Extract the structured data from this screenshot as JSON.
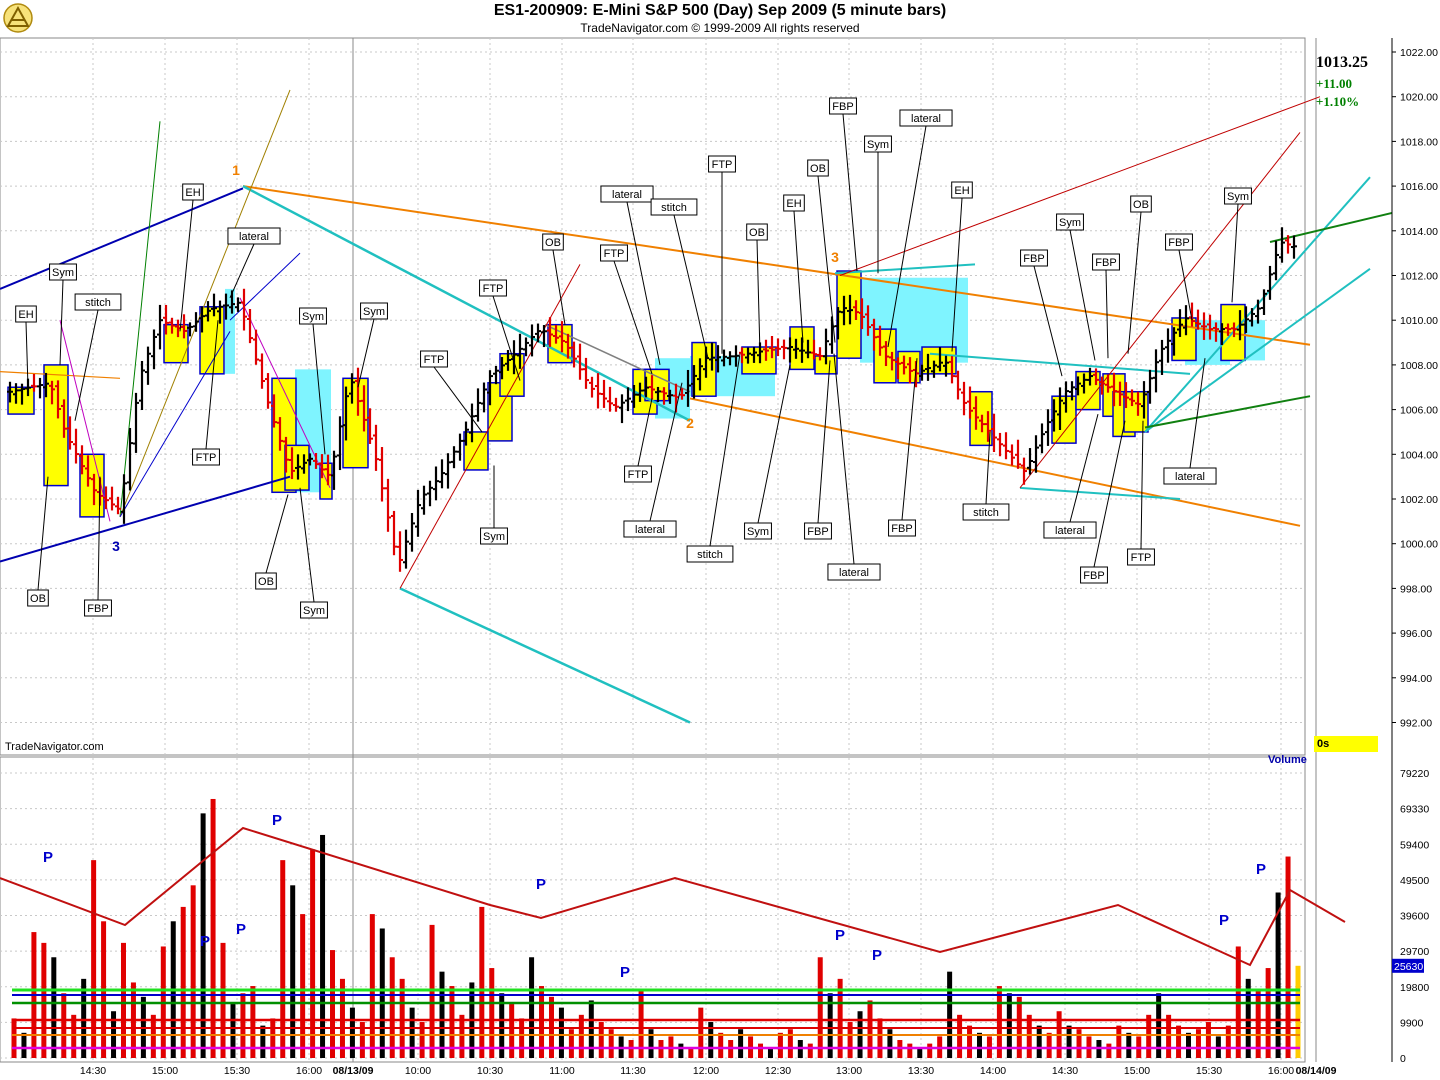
{
  "header": {
    "title": "ES1-200909:  E-Mini S&P 500 (Day) Sep 2009  (5 minute bars)",
    "subtitle": "TradeNavigator.com © 1999-2009 All rights reserved",
    "logo_icon": "tradenavigator-logo-icon"
  },
  "quote": {
    "last": "1013.25",
    "change": "+11.00",
    "pct": "+1.10%"
  },
  "timer": "0s",
  "watermark": "TradeNavigator.com",
  "volume_label": "Volume",
  "volume_last": "25630",
  "colors": {
    "up": "#000000",
    "down": "#e00000",
    "highlight": "#ffff00",
    "accent_box": "#0000cc",
    "cyan": "#20c0c0",
    "orange": "#f08000",
    "blue": "#0000b0"
  },
  "chart_data": [
    {
      "type": "ohlc",
      "title": "ES1-200909:  E-Mini S&P 500 (Day) Sep 2009  (5 minute bars)",
      "ylim": [
        990,
        1023
      ],
      "y_ticks": [
        "1022.00",
        "1020.00",
        "1018.00",
        "1016.00",
        "1014.00",
        "1012.00",
        "1010.00",
        "1008.00",
        "1006.00",
        "1004.00",
        "1002.00",
        "1000.00",
        "998.00",
        "996.00",
        "994.00",
        "992.00"
      ],
      "x_ticks": [
        "14:30",
        "15:00",
        "15:30",
        "16:00",
        "08/13/09",
        "10:00",
        "10:30",
        "11:00",
        "11:30",
        "12:00",
        "12:30",
        "13:00",
        "13:30",
        "14:00",
        "14:30",
        "15:00",
        "15:30",
        "16:00",
        "08/14/09"
      ],
      "wave_labels": [
        "1",
        "3",
        "2",
        "3"
      ],
      "annotations": [
        "EH",
        "Sym",
        "stitch",
        "OB",
        "FBP",
        "3",
        "EH",
        "lateral",
        "FTP",
        "Sym",
        "Sym",
        "OB",
        "Sym",
        "Sym",
        "FTP",
        "FTP",
        "OB",
        "FTP",
        "lateral",
        "FTP",
        "stitch",
        "OB",
        "2",
        "FTP",
        "lateral",
        "stitch",
        "EH",
        "FBP",
        "OB",
        "Sym",
        "FBP",
        "lateral",
        "EH",
        "Sym",
        "FBP",
        "lateral",
        "stitch",
        "FBP",
        "Sym",
        "FBP",
        "OB",
        "lateral",
        "FBP",
        "FTP",
        "FBP",
        "lateral",
        "Sym"
      ]
    },
    {
      "type": "bar",
      "title": "Volume",
      "ylim": [
        0,
        79220
      ],
      "y_ticks": [
        "79220",
        "69330",
        "59400",
        "49500",
        "39600",
        "29700",
        "19800",
        "9900",
        "0"
      ],
      "pivot_label": "P",
      "last_value": 25630
    }
  ]
}
